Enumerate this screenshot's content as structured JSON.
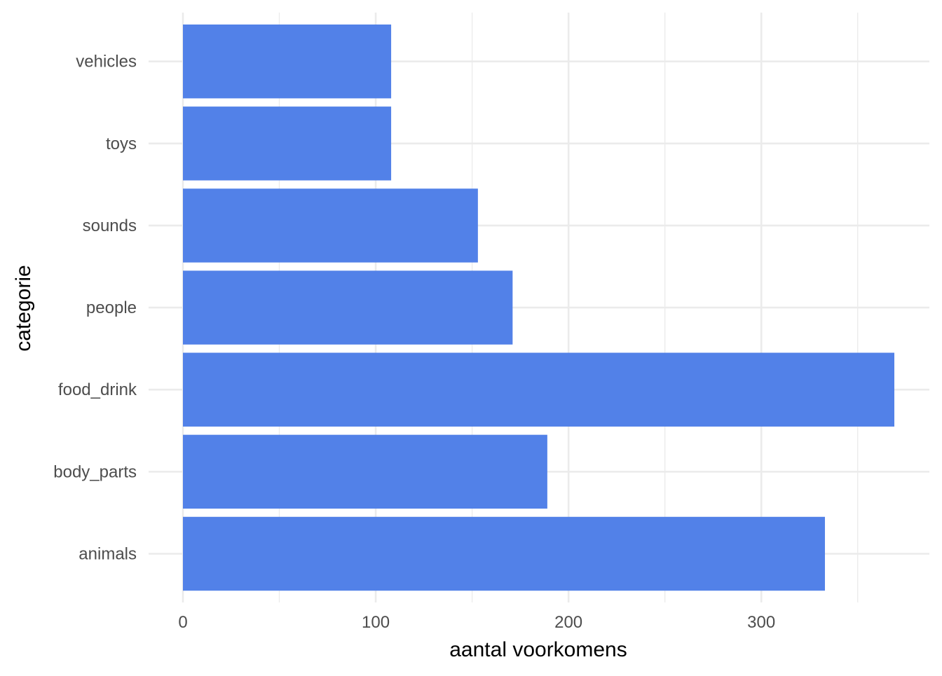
{
  "chart_data": {
    "type": "bar",
    "orientation": "horizontal",
    "categories": [
      "animals",
      "body_parts",
      "food_drink",
      "people",
      "sounds",
      "toys",
      "vehicles"
    ],
    "values": [
      333,
      189,
      369,
      171,
      153,
      108,
      108
    ],
    "xlabel": "aantal voorkomens",
    "ylabel": "categorie",
    "xlim": [
      0,
      369
    ],
    "x_ticks": [
      0,
      100,
      200,
      300
    ],
    "grid": true,
    "colors": {
      "bar": "#5281e8",
      "grid": "#ebebeb",
      "tick_text": "#4d4d4d",
      "axis_title": "#000000",
      "background": "#ffffff"
    }
  }
}
